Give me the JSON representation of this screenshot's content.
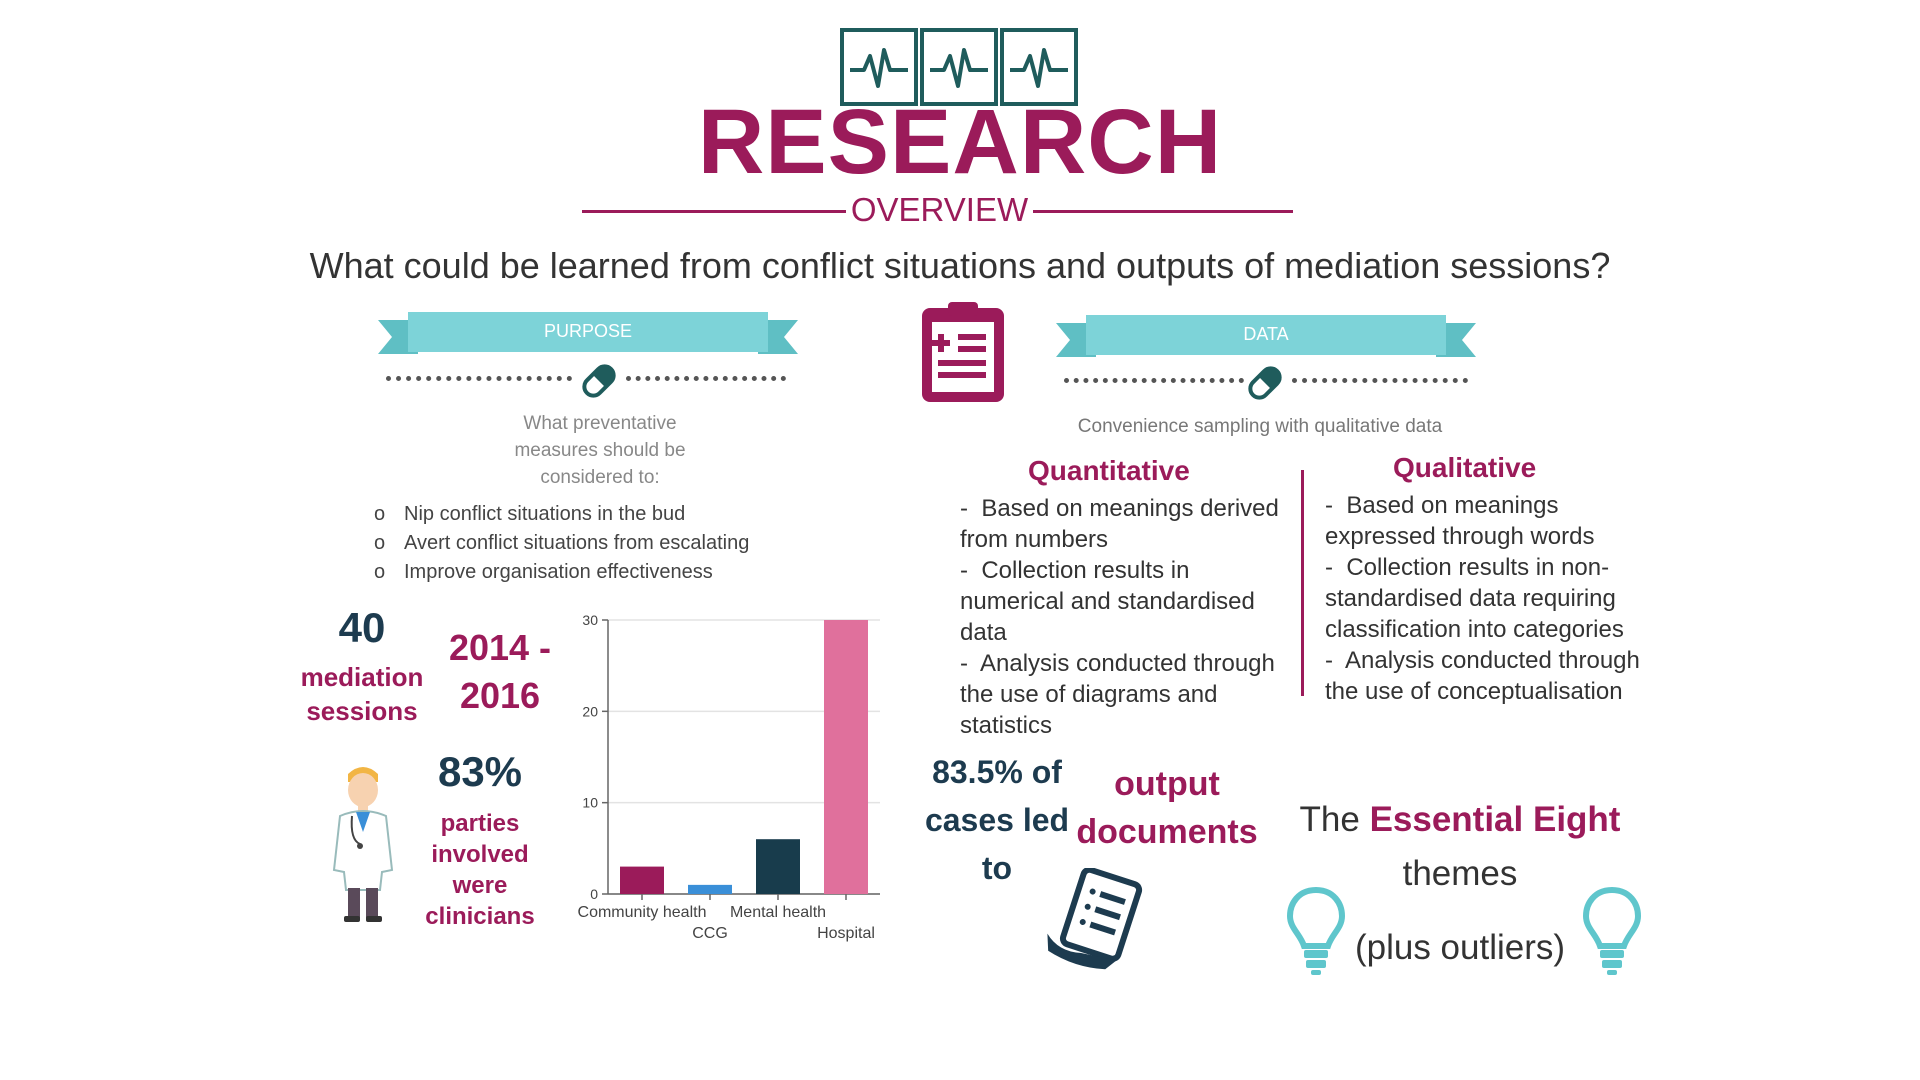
{
  "header": {
    "title": "RESEARCH",
    "subtitle": "OVERVIEW",
    "question": "What could be learned from conflict situations and outputs of mediation sessions?"
  },
  "purpose": {
    "ribbon_label": "PURPOSE",
    "question": "What preventative measures should be considered to:",
    "bullets": [
      "Nip conflict situations in the bud",
      "Avert conflict situations from escalating",
      "Improve organisation effectiveness"
    ],
    "bullet_marker": "o"
  },
  "data": {
    "ribbon_label": "DATA",
    "sampling": "Convenience sampling with qualitative data",
    "quantitative": {
      "title": "Quantitative",
      "points": [
        "Based on meanings derived from numbers",
        "Collection results in numerical and standardised data",
        "Analysis conducted through the use of diagrams and statistics"
      ]
    },
    "qualitative": {
      "title": "Qualitative",
      "points": [
        "Based on meanings expressed through words",
        "Collection results in non-standardised data requiring classification into categories",
        "Analysis conducted through the use of conceptualisation"
      ]
    }
  },
  "stats": {
    "sessions_value": "40",
    "sessions_label_1": "mediation",
    "sessions_label_2": "sessions",
    "years_1": "2014 -",
    "years_2": "2016",
    "clinicians_value": "83%",
    "clinicians_label": [
      "parties",
      "involved",
      "were",
      "clinicians"
    ],
    "cases_line_1": "83.5% of",
    "cases_line_2": "cases led",
    "cases_line_3": "to",
    "output_line_1": "output",
    "output_line_2": "documents",
    "themes_prefix": "The",
    "themes_emph": "Essential Eight",
    "themes_line_2": "themes",
    "themes_line_3": "(plus outliers)"
  },
  "colors": {
    "plum": "#9b1b5a",
    "navy": "#1d3b4f",
    "teal": "#7dd3d8",
    "dark_teal": "#1f5c5c"
  },
  "icons": [
    "heartbeat-monitor-icon",
    "clipboard-icon",
    "pill-icon",
    "doctor-icon",
    "document-icon",
    "lightbulb-icon"
  ],
  "chart_data": {
    "type": "bar",
    "categories": [
      "Community health",
      "CCG",
      "Mental health",
      "Hospital"
    ],
    "values": [
      3,
      1,
      6,
      30
    ],
    "bar_colors": [
      "#9b1b5a",
      "#3a8fd8",
      "#183c4c",
      "#e0709c"
    ],
    "yticks": [
      0,
      10,
      20,
      30
    ],
    "ylim": [
      0,
      30
    ],
    "grid": true
  }
}
